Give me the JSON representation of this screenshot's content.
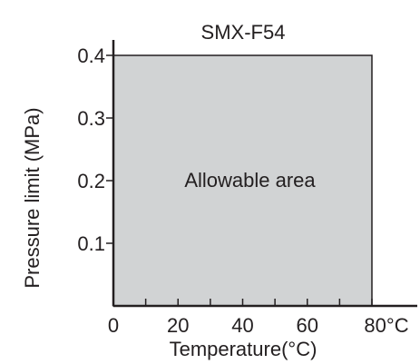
{
  "chart_data": {
    "type": "area",
    "title": "SMX-F54",
    "xlabel": "Temperature(°C)",
    "ylabel": "Pressure limit (MPa)",
    "xlim": [
      0,
      80
    ],
    "ylim": [
      0,
      0.4
    ],
    "x_ticks": [
      0,
      20,
      40,
      60,
      80
    ],
    "x_tick_labels": [
      "0",
      "20",
      "40",
      "60",
      "80°C"
    ],
    "x_minor_ticks": [
      10,
      30,
      50,
      70
    ],
    "y_ticks": [
      0.1,
      0.2,
      0.3,
      0.4
    ],
    "y_tick_labels": [
      "0.1",
      "0.2",
      "0.3",
      "0.4"
    ],
    "region": {
      "label": "Allowable area",
      "x": [
        0,
        80
      ],
      "y": [
        0,
        0.4
      ],
      "fill": "#d1d3d4"
    },
    "grid": false
  }
}
